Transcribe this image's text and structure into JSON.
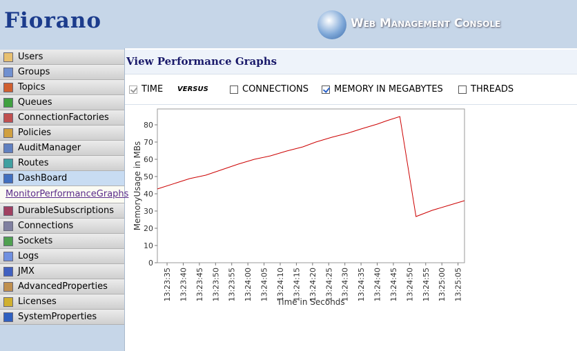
{
  "header": {
    "logo": "Fiorano",
    "console_title": "Web Management Console"
  },
  "nav": {
    "items": [
      {
        "label": "Users"
      },
      {
        "label": "Groups"
      },
      {
        "label": "Topics"
      },
      {
        "label": "Queues"
      },
      {
        "label": "ConnectionFactories"
      },
      {
        "label": "Policies"
      },
      {
        "label": "AuditManager"
      },
      {
        "label": "Routes"
      },
      {
        "label": "DashBoard",
        "selected": true,
        "children": [
          "MonitorPerformanceGraphs"
        ]
      },
      {
        "label": "DurableSubscriptions"
      },
      {
        "label": "Connections"
      },
      {
        "label": "Sockets"
      },
      {
        "label": "Logs"
      },
      {
        "label": "JMX"
      },
      {
        "label": "AdvancedProperties"
      },
      {
        "label": "Licenses"
      },
      {
        "label": "SystemProperties"
      }
    ]
  },
  "page_title": "View Performance Graphs",
  "x_option": {
    "label": "TIME",
    "checked": true
  },
  "versus": "VERSUS",
  "y_options": [
    {
      "label": "CONNECTIONS",
      "checked": false
    },
    {
      "label": "MEMORY IN MEGABYTES",
      "checked": true
    },
    {
      "label": "THREADS",
      "checked": false
    }
  ],
  "chart_data": {
    "type": "line",
    "x_label": "Time in Seconds",
    "y_label": "MemoryUsage in MBs",
    "x": [
      "13:23:32",
      "13:23:38",
      "13:23:42",
      "13:23:47",
      "13:23:52",
      "13:23:57",
      "13:24:02",
      "13:24:07",
      "13:24:12",
      "13:24:17",
      "13:24:21",
      "13:24:26",
      "13:24:31",
      "13:24:35",
      "13:24:40",
      "13:24:43",
      "13:24:47",
      "13:24:52",
      "13:24:57",
      "13:25:02",
      "13:25:07"
    ],
    "values": [
      42.8,
      46.4,
      48.8,
      50.8,
      54,
      57.2,
      60,
      62,
      64.8,
      67.2,
      70,
      72.8,
      75.2,
      77.6,
      80.4,
      82.4,
      84.8,
      26.8,
      30.4,
      33.2,
      36
    ],
    "color": "#cc0000",
    "xlim": [
      "13:23:32",
      "13:25:07"
    ],
    "xticks": [
      "13:23:35",
      "13:23:40",
      "13:23:45",
      "13:23:50",
      "13:23:55",
      "13:24:00",
      "13:24:05",
      "13:24:10",
      "13:24:15",
      "13:24:20",
      "13:24:25",
      "13:24:30",
      "13:24:35",
      "13:24:40",
      "13:24:45",
      "13:24:50",
      "13:24:55",
      "13:25:00",
      "13:25:05"
    ],
    "ylim": [
      0,
      89.2
    ],
    "yticks": [
      0,
      10,
      20,
      30,
      40,
      50,
      60,
      70,
      80
    ],
    "grid": false
  }
}
